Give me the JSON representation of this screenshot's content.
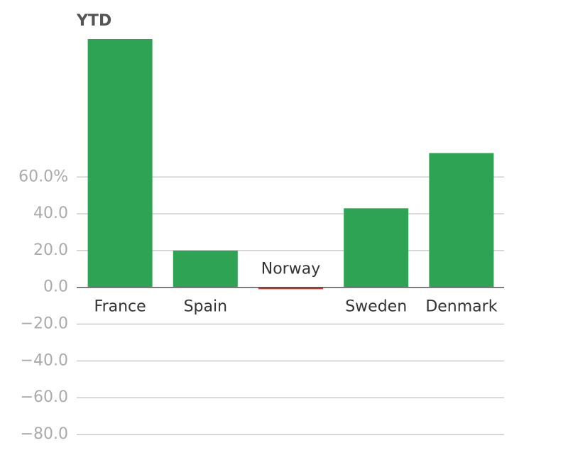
{
  "chart_data": {
    "type": "bar",
    "title": "YTD",
    "categories": [
      "France",
      "Spain",
      "Norway",
      "Sweden",
      "Denmark"
    ],
    "values": [
      135,
      20,
      -1,
      43,
      73
    ],
    "color": "#2fa354",
    "negative_color": "#c0392b",
    "ylim": [
      -80,
      135
    ],
    "yticks": [
      {
        "value": -80,
        "label": "−80.0"
      },
      {
        "value": -60,
        "label": "−60.0"
      },
      {
        "value": -40,
        "label": "−40.0"
      },
      {
        "value": -20,
        "label": "−20.0"
      },
      {
        "value": 0,
        "label": "0.0"
      },
      {
        "value": 20,
        "label": "20.0"
      },
      {
        "value": 40,
        "label": "40.0"
      },
      {
        "value": 60,
        "label": "60.0%"
      }
    ],
    "grid": true
  }
}
